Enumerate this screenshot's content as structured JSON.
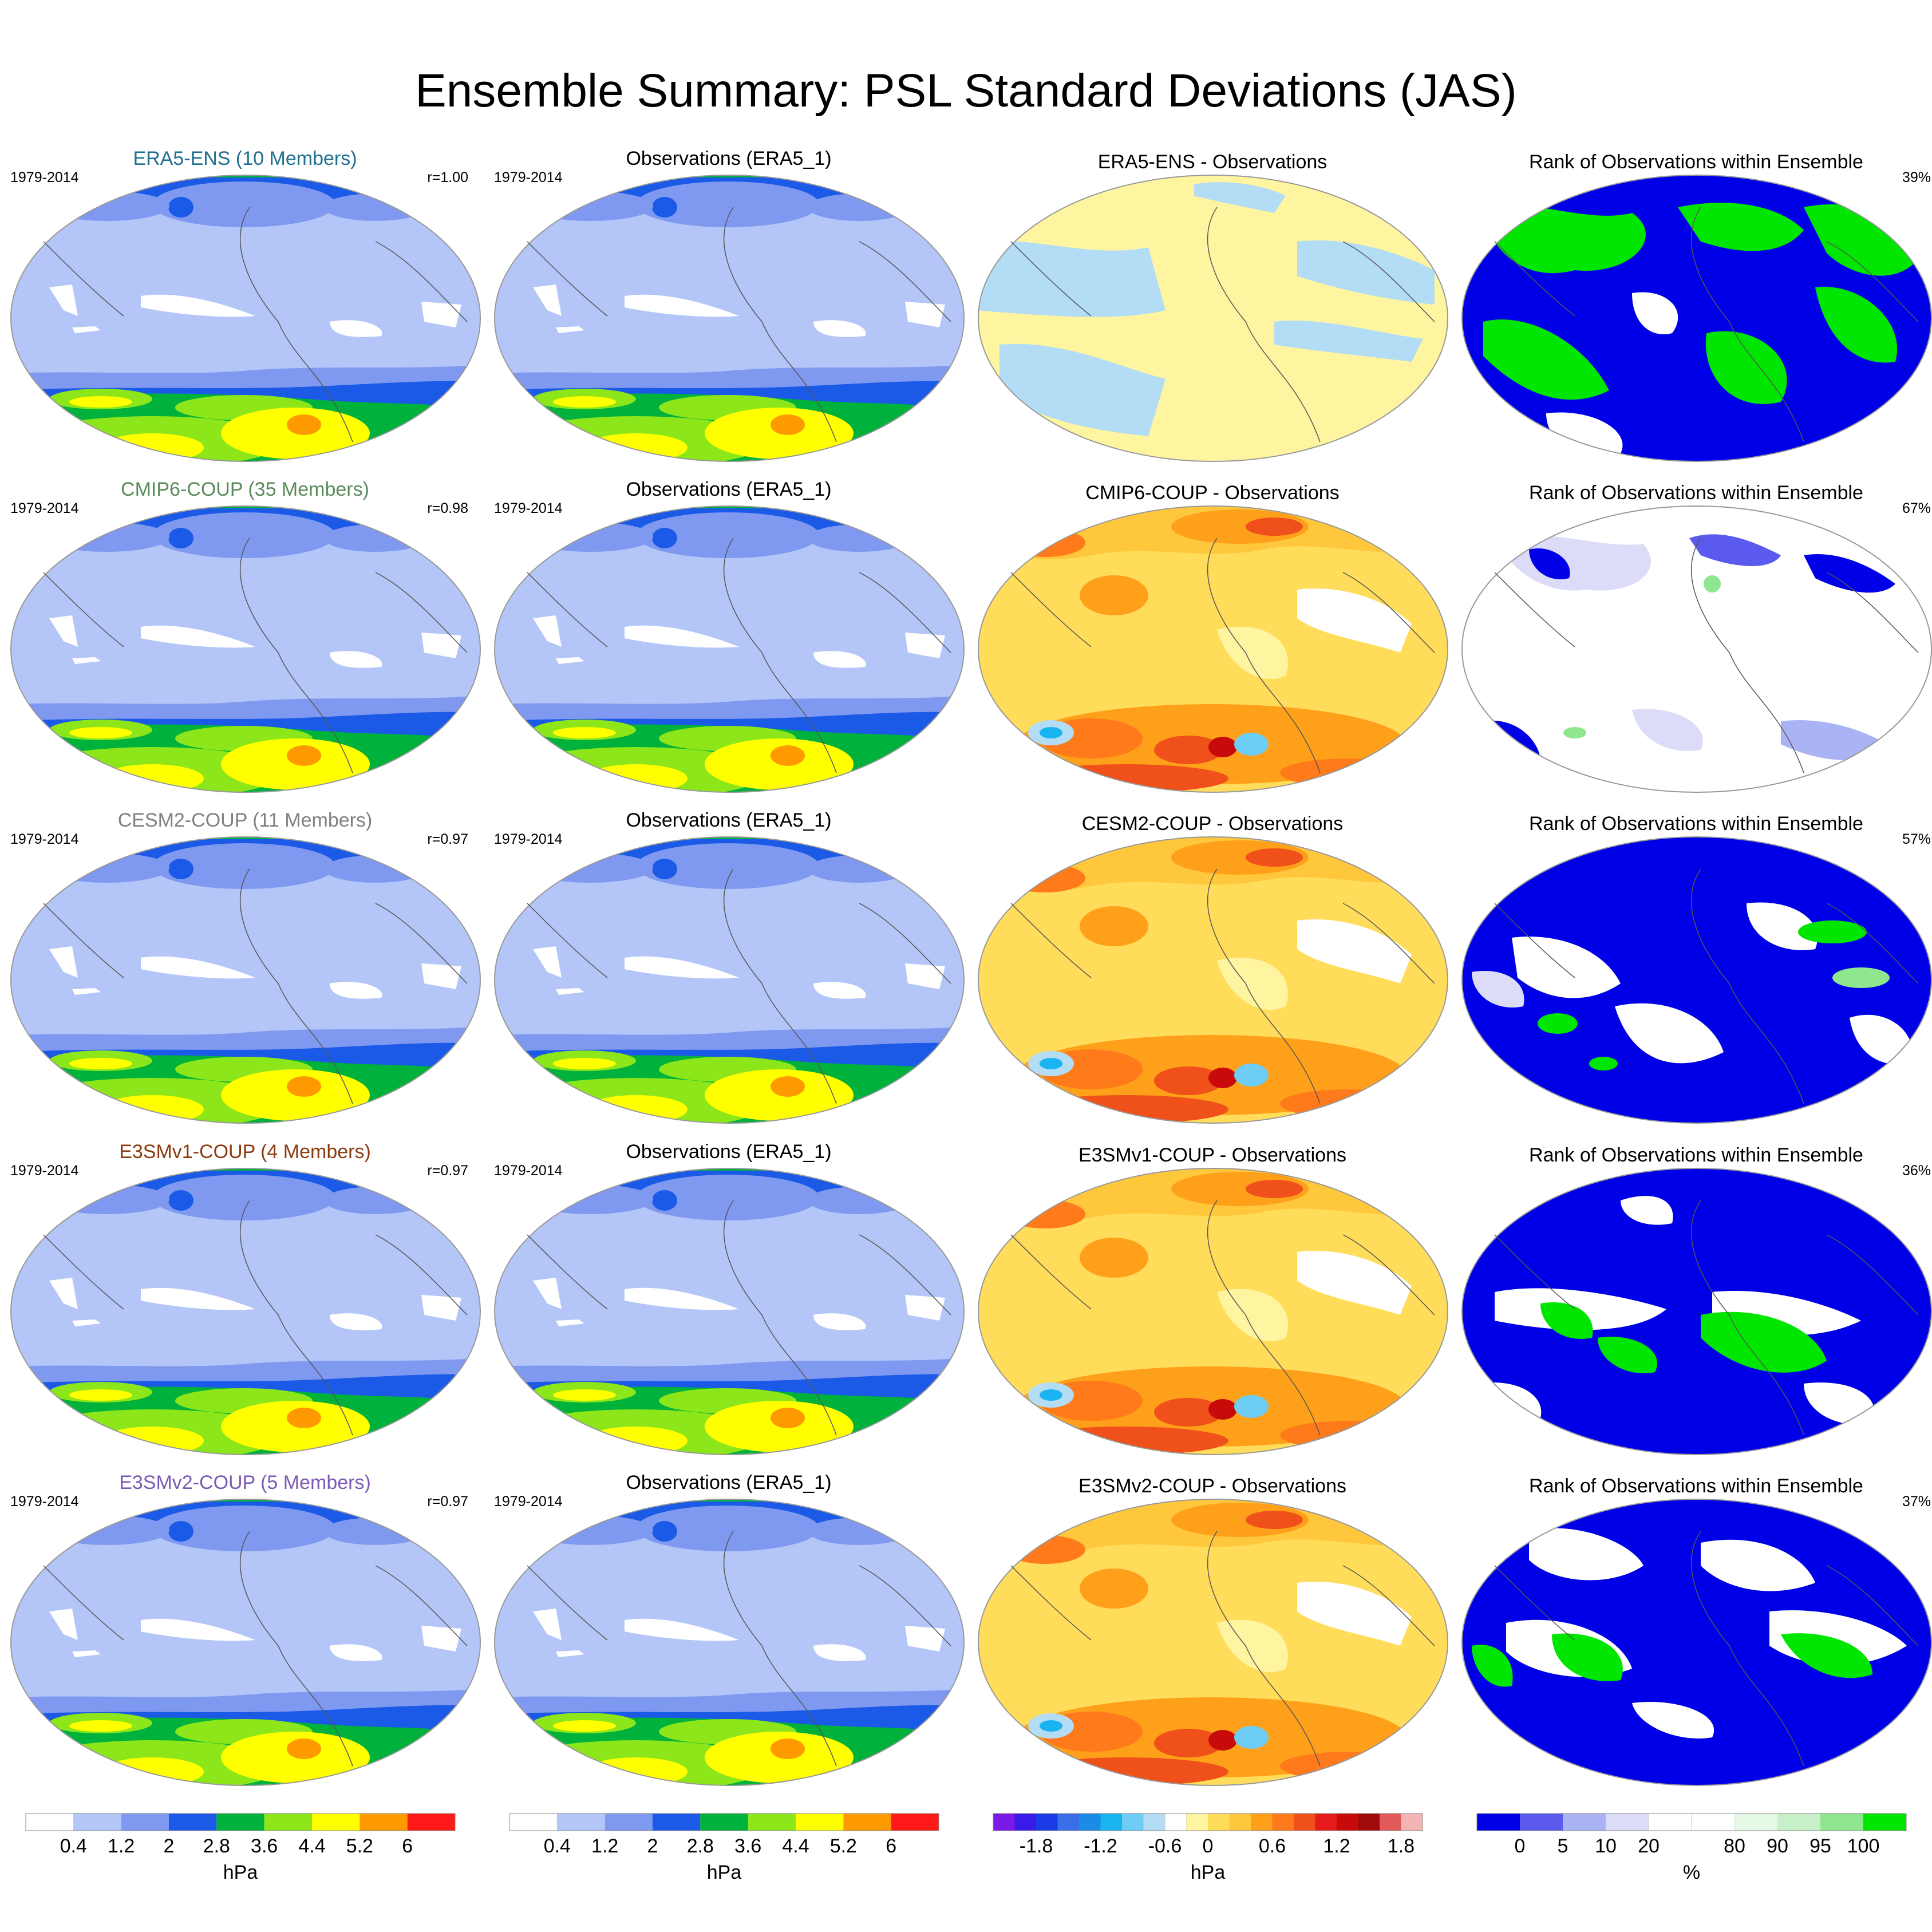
{
  "title": "Ensemble Summary: PSL Standard Deviations (JAS)",
  "rows": [
    {
      "ensemble": {
        "title": "ERA5-ENS (10 Members)",
        "color": "#1f6f8f",
        "period": "1979-2014",
        "corr": "r=1.00",
        "variant": 0
      },
      "obs": {
        "title": "Observations (ERA5_1)",
        "period": "1979-2014"
      },
      "diff": {
        "title": "ERA5-ENS - Observations",
        "variant": 0
      },
      "rank": {
        "title": "Rank of Observations within Ensemble",
        "pct": "39%",
        "variant": 0
      }
    },
    {
      "ensemble": {
        "title": "CMIP6-COUP (35 Members)",
        "color": "#5a8a5a",
        "period": "1979-2014",
        "corr": "r=0.98",
        "variant": 1
      },
      "obs": {
        "title": "Observations (ERA5_1)",
        "period": "1979-2014"
      },
      "diff": {
        "title": "CMIP6-COUP - Observations",
        "variant": 1
      },
      "rank": {
        "title": "Rank of Observations within Ensemble",
        "pct": "67%",
        "variant": 1
      }
    },
    {
      "ensemble": {
        "title": "CESM2-COUP (11 Members)",
        "color": "#808080",
        "period": "1979-2014",
        "corr": "r=0.97",
        "variant": 2
      },
      "obs": {
        "title": "Observations (ERA5_1)",
        "period": "1979-2014"
      },
      "diff": {
        "title": "CESM2-COUP - Observations",
        "variant": 2
      },
      "rank": {
        "title": "Rank of Observations within Ensemble",
        "pct": "57%",
        "variant": 2
      }
    },
    {
      "ensemble": {
        "title": "E3SMv1-COUP (4 Members)",
        "color": "#8b3a0f",
        "period": "1979-2014",
        "corr": "r=0.97",
        "variant": 3
      },
      "obs": {
        "title": "Observations (ERA5_1)",
        "period": "1979-2014"
      },
      "diff": {
        "title": "E3SMv1-COUP - Observations",
        "variant": 3
      },
      "rank": {
        "title": "Rank of Observations within Ensemble",
        "pct": "36%",
        "variant": 3
      }
    },
    {
      "ensemble": {
        "title": "E3SMv2-COUP (5 Members)",
        "color": "#7b5ab5",
        "period": "1979-2014",
        "corr": "r=0.97",
        "variant": 4
      },
      "obs": {
        "title": "Observations (ERA5_1)",
        "period": "1979-2014"
      },
      "diff": {
        "title": "E3SMv2-COUP - Observations",
        "variant": 4
      },
      "rank": {
        "title": "Rank of Observations within Ensemble",
        "pct": "37%",
        "variant": 4
      }
    }
  ],
  "colorbars": {
    "std": {
      "unit": "hPa",
      "colors": [
        "#ffffff",
        "#b3c6f7",
        "#8099f0",
        "#1a5ae6",
        "#00b23c",
        "#8ce61a",
        "#ffff00",
        "#ff9900",
        "#ff1a1a"
      ],
      "ticks": [
        "0.4",
        "1.2",
        "2",
        "2.8",
        "3.6",
        "4.4",
        "5.2",
        "6"
      ]
    },
    "diff": {
      "unit": "hPa",
      "colors": [
        "#7a1ae6",
        "#3a1ae6",
        "#1a3ae6",
        "#3a6ee6",
        "#1a8ce6",
        "#1ab4f0",
        "#6ecdf5",
        "#b3dcf5",
        "#ffffff",
        "#fff5a0",
        "#ffdc5a",
        "#ffc83c",
        "#ffa01a",
        "#ff7a1a",
        "#f0501a",
        "#e61a1a",
        "#c80a0a",
        "#a00a0a",
        "#e05a5a",
        "#f5b4b4"
      ],
      "ticks": [
        "-1.8",
        "-1.2",
        "-0.6",
        "0",
        "0.6",
        "1.2",
        "1.8"
      ]
    },
    "rank": {
      "unit": "%",
      "colors": [
        "#0000e6",
        "#5a5aee",
        "#aab4f5",
        "#dcdcf8",
        "#ffffff",
        "#ffffff",
        "#e6f8e6",
        "#c8f0c8",
        "#8ee68e",
        "#00e600"
      ],
      "ticks": [
        "0",
        "5",
        "10",
        "20",
        "80",
        "90",
        "95",
        "100"
      ]
    }
  }
}
